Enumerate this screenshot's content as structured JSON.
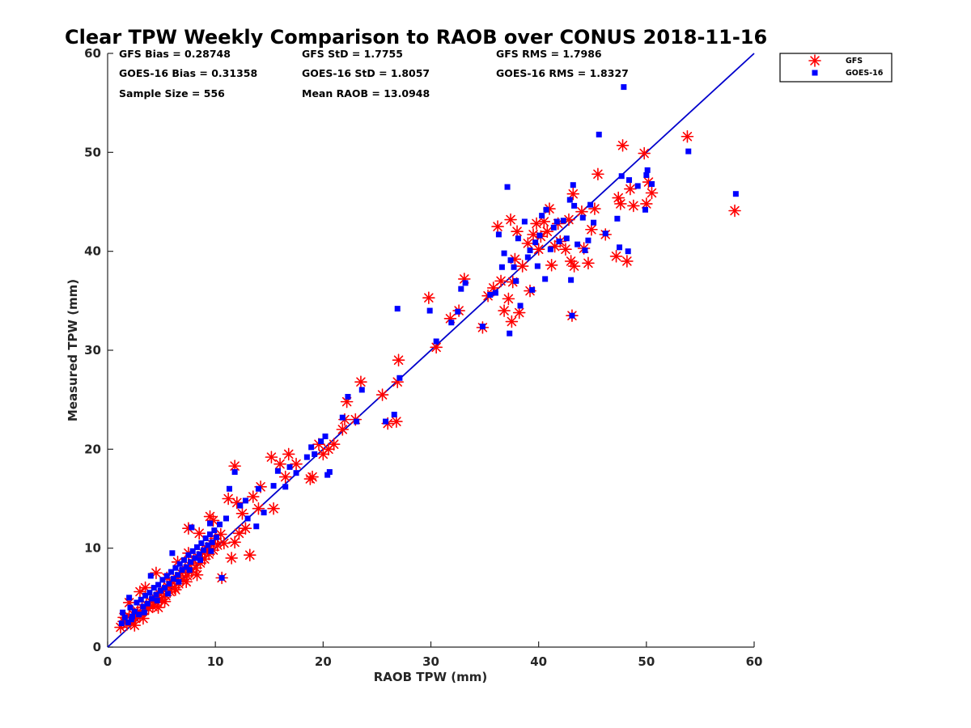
{
  "chart_data": {
    "type": "scatter",
    "title": "Clear TPW Weekly Comparison to RAOB over CONUS 2018-11-16",
    "xlabel": "RAOB TPW (mm)",
    "ylabel": "Measured TPW (mm)",
    "xlim": [
      0,
      60
    ],
    "ylim": [
      0,
      60
    ],
    "xticks": [
      "0",
      "10",
      "20",
      "30",
      "40",
      "50",
      "60"
    ],
    "yticks": [
      "0",
      "10",
      "20",
      "30",
      "40",
      "50",
      "60"
    ],
    "grid": false,
    "legend_position": "top-right, outside plot",
    "reference_line": {
      "type": "1:1",
      "color": "#0000cc"
    },
    "stats": {
      "gfs_bias": "GFS Bias = 0.28748",
      "goes_bias": "GOES-16 Bias = 0.31358",
      "sample_size": "Sample Size = 556",
      "gfs_std": "GFS StD = 1.7755",
      "goes_std": "GOES-16 StD = 1.8057",
      "mean_raob": "Mean RAOB = 13.0948",
      "gfs_rms": "GFS RMS = 1.7986",
      "goes_rms": "GOES-16 RMS = 1.8327"
    },
    "series": [
      {
        "name": "GFS",
        "marker": "asterisk",
        "color": "#ff0000",
        "points": [
          [
            1.2,
            2.0
          ],
          [
            1.5,
            2.6
          ],
          [
            1.8,
            2.3
          ],
          [
            2.0,
            3.1
          ],
          [
            2.2,
            2.7
          ],
          [
            2.4,
            3.3
          ],
          [
            2.6,
            2.9
          ],
          [
            2.8,
            3.6
          ],
          [
            3.0,
            3.2
          ],
          [
            3.2,
            4.0
          ],
          [
            3.4,
            3.7
          ],
          [
            3.6,
            4.3
          ],
          [
            3.8,
            3.9
          ],
          [
            4.0,
            4.6
          ],
          [
            4.2,
            4.1
          ],
          [
            4.4,
            5.0
          ],
          [
            4.6,
            4.5
          ],
          [
            4.8,
            5.4
          ],
          [
            5.0,
            4.8
          ],
          [
            5.2,
            5.8
          ],
          [
            5.4,
            5.2
          ],
          [
            5.6,
            6.1
          ],
          [
            5.8,
            5.6
          ],
          [
            6.0,
            6.6
          ],
          [
            6.2,
            6.0
          ],
          [
            6.4,
            7.0
          ],
          [
            6.6,
            6.4
          ],
          [
            6.8,
            7.5
          ],
          [
            7.0,
            6.8
          ],
          [
            7.2,
            7.9
          ],
          [
            7.4,
            7.2
          ],
          [
            7.6,
            8.3
          ],
          [
            7.8,
            7.6
          ],
          [
            8.0,
            8.8
          ],
          [
            8.2,
            8.0
          ],
          [
            8.4,
            9.1
          ],
          [
            8.6,
            8.5
          ],
          [
            8.8,
            9.6
          ],
          [
            9.0,
            8.9
          ],
          [
            9.2,
            10.0
          ],
          [
            9.4,
            9.4
          ],
          [
            9.6,
            10.5
          ],
          [
            9.8,
            9.8
          ],
          [
            10.0,
            11.0
          ],
          [
            10.2,
            10.3
          ],
          [
            10.5,
            11.4
          ],
          [
            2.0,
            4.5
          ],
          [
            3.0,
            5.6
          ],
          [
            3.5,
            6.0
          ],
          [
            4.5,
            7.5
          ],
          [
            5.5,
            7.0
          ],
          [
            6.5,
            8.6
          ],
          [
            7.5,
            9.5
          ],
          [
            7.5,
            12.0
          ],
          [
            8.5,
            11.5
          ],
          [
            9.5,
            13.2
          ],
          [
            9.8,
            12.8
          ],
          [
            10.6,
            7.0
          ],
          [
            11.5,
            9.0
          ],
          [
            11.8,
            18.3
          ],
          [
            11.2,
            15.0
          ],
          [
            12.0,
            14.6
          ],
          [
            12.5,
            13.5
          ],
          [
            12.8,
            12.0
          ],
          [
            13.2,
            9.3
          ],
          [
            13.5,
            15.2
          ],
          [
            14.0,
            14.0
          ],
          [
            14.2,
            16.2
          ],
          [
            15.2,
            19.2
          ],
          [
            15.4,
            14.0
          ],
          [
            16.0,
            18.5
          ],
          [
            16.5,
            17.2
          ],
          [
            16.8,
            19.5
          ],
          [
            17.5,
            18.5
          ],
          [
            18.8,
            17.0
          ],
          [
            19.0,
            17.2
          ],
          [
            19.6,
            20.5
          ],
          [
            20.0,
            19.5
          ],
          [
            20.5,
            20.0
          ],
          [
            21.0,
            20.5
          ],
          [
            21.8,
            22.0
          ],
          [
            22.2,
            24.8
          ],
          [
            22.0,
            23.0
          ],
          [
            23.0,
            23.0
          ],
          [
            23.5,
            26.8
          ],
          [
            25.5,
            25.5
          ],
          [
            26.0,
            22.6
          ],
          [
            26.8,
            22.8
          ],
          [
            26.9,
            26.8
          ],
          [
            27.0,
            29.0
          ],
          [
            29.8,
            35.3
          ],
          [
            30.5,
            30.3
          ],
          [
            31.8,
            33.2
          ],
          [
            32.6,
            34.0
          ],
          [
            33.1,
            37.2
          ],
          [
            34.8,
            32.3
          ],
          [
            35.3,
            35.5
          ],
          [
            35.8,
            36.3
          ],
          [
            36.2,
            42.5
          ],
          [
            36.5,
            37.0
          ],
          [
            36.8,
            34.0
          ],
          [
            37.2,
            35.2
          ],
          [
            37.4,
            43.2
          ],
          [
            37.6,
            36.9
          ],
          [
            37.5,
            32.9
          ],
          [
            37.8,
            39.2
          ],
          [
            38.0,
            42.0
          ],
          [
            38.2,
            33.8
          ],
          [
            38.5,
            38.5
          ],
          [
            39.0,
            40.8
          ],
          [
            39.2,
            36.0
          ],
          [
            39.5,
            41.7
          ],
          [
            39.8,
            42.8
          ],
          [
            40.0,
            40.2
          ],
          [
            40.2,
            41.5
          ],
          [
            40.5,
            43.0
          ],
          [
            40.8,
            42.0
          ],
          [
            41.0,
            44.3
          ],
          [
            41.2,
            38.6
          ],
          [
            41.5,
            40.5
          ],
          [
            41.8,
            42.8
          ],
          [
            42.0,
            41.0
          ],
          [
            42.5,
            40.2
          ],
          [
            42.8,
            43.2
          ],
          [
            43.0,
            39.0
          ],
          [
            43.2,
            45.8
          ],
          [
            43.3,
            38.5
          ],
          [
            43.1,
            33.5
          ],
          [
            44.0,
            44.0
          ],
          [
            44.2,
            40.3
          ],
          [
            44.6,
            38.8
          ],
          [
            44.9,
            42.2
          ],
          [
            45.5,
            47.8
          ],
          [
            45.2,
            44.3
          ],
          [
            46.2,
            41.7
          ],
          [
            47.2,
            39.5
          ],
          [
            47.4,
            45.4
          ],
          [
            47.6,
            44.8
          ],
          [
            47.8,
            50.7
          ],
          [
            48.2,
            39.0
          ],
          [
            48.5,
            46.3
          ],
          [
            48.8,
            44.6
          ],
          [
            49.8,
            49.9
          ],
          [
            50.0,
            44.8
          ],
          [
            50.2,
            47.0
          ],
          [
            50.5,
            45.9
          ],
          [
            53.8,
            51.6
          ],
          [
            58.2,
            44.1
          ],
          [
            1.5,
            3.0
          ],
          [
            2.5,
            2.2
          ],
          [
            3.3,
            2.9
          ],
          [
            4.7,
            4.0
          ],
          [
            5.3,
            4.6
          ],
          [
            6.3,
            5.8
          ],
          [
            7.3,
            6.6
          ],
          [
            8.3,
            7.3
          ],
          [
            9.3,
            9.8
          ],
          [
            10.8,
            10.5
          ],
          [
            11.8,
            10.6
          ],
          [
            12.2,
            11.5
          ]
        ]
      },
      {
        "name": "GOES-16",
        "marker": "square",
        "color": "#0000ff",
        "points": [
          [
            1.3,
            2.4
          ],
          [
            1.6,
            3.0
          ],
          [
            1.9,
            2.5
          ],
          [
            2.1,
            4.0
          ],
          [
            2.3,
            3.1
          ],
          [
            2.5,
            3.6
          ],
          [
            2.7,
            4.5
          ],
          [
            2.9,
            3.3
          ],
          [
            3.1,
            4.8
          ],
          [
            3.3,
            4.1
          ],
          [
            3.5,
            5.2
          ],
          [
            3.7,
            4.4
          ],
          [
            3.9,
            5.5
          ],
          [
            4.1,
            4.9
          ],
          [
            4.3,
            6.0
          ],
          [
            4.5,
            5.3
          ],
          [
            4.7,
            6.3
          ],
          [
            4.9,
            5.7
          ],
          [
            5.1,
            6.8
          ],
          [
            5.3,
            6.0
          ],
          [
            5.5,
            7.2
          ],
          [
            5.7,
            6.4
          ],
          [
            5.9,
            7.6
          ],
          [
            6.1,
            6.9
          ],
          [
            6.3,
            8.0
          ],
          [
            6.5,
            7.3
          ],
          [
            6.7,
            8.4
          ],
          [
            6.9,
            7.8
          ],
          [
            7.1,
            8.8
          ],
          [
            7.3,
            8.1
          ],
          [
            7.5,
            9.3
          ],
          [
            7.7,
            8.6
          ],
          [
            7.9,
            9.7
          ],
          [
            8.1,
            9.0
          ],
          [
            8.3,
            10.1
          ],
          [
            8.5,
            9.4
          ],
          [
            8.7,
            10.5
          ],
          [
            8.9,
            9.8
          ],
          [
            9.1,
            11.0
          ],
          [
            9.3,
            10.3
          ],
          [
            9.5,
            11.4
          ],
          [
            9.7,
            10.6
          ],
          [
            9.9,
            11.8
          ],
          [
            10.1,
            11.1
          ],
          [
            10.4,
            12.4
          ],
          [
            2.0,
            5.0
          ],
          [
            4.0,
            7.2
          ],
          [
            6.0,
            9.5
          ],
          [
            7.8,
            12.1
          ],
          [
            9.5,
            12.5
          ],
          [
            10.6,
            7.0
          ],
          [
            11.0,
            13.0
          ],
          [
            11.3,
            16.0
          ],
          [
            11.8,
            17.7
          ],
          [
            12.3,
            14.3
          ],
          [
            12.8,
            14.8
          ],
          [
            13.0,
            13.0
          ],
          [
            13.8,
            12.2
          ],
          [
            14.0,
            16.0
          ],
          [
            14.5,
            13.6
          ],
          [
            15.4,
            16.3
          ],
          [
            15.8,
            17.8
          ],
          [
            16.5,
            16.2
          ],
          [
            16.9,
            18.2
          ],
          [
            17.5,
            17.6
          ],
          [
            18.5,
            19.2
          ],
          [
            18.9,
            20.2
          ],
          [
            19.2,
            19.5
          ],
          [
            19.8,
            20.8
          ],
          [
            20.2,
            21.3
          ],
          [
            20.4,
            17.4
          ],
          [
            20.6,
            17.7
          ],
          [
            21.8,
            23.2
          ],
          [
            22.3,
            25.3
          ],
          [
            23.1,
            22.8
          ],
          [
            23.6,
            26.0
          ],
          [
            25.8,
            22.8
          ],
          [
            26.6,
            23.5
          ],
          [
            26.9,
            34.2
          ],
          [
            27.1,
            27.2
          ],
          [
            29.9,
            34.0
          ],
          [
            30.5,
            30.9
          ],
          [
            31.9,
            32.8
          ],
          [
            32.5,
            33.9
          ],
          [
            32.8,
            36.2
          ],
          [
            33.2,
            36.8
          ],
          [
            34.8,
            32.4
          ],
          [
            35.5,
            35.6
          ],
          [
            36.0,
            35.8
          ],
          [
            36.3,
            41.7
          ],
          [
            36.6,
            38.4
          ],
          [
            36.8,
            39.8
          ],
          [
            37.1,
            46.5
          ],
          [
            37.3,
            31.7
          ],
          [
            37.4,
            39.1
          ],
          [
            37.7,
            38.4
          ],
          [
            37.9,
            37.0
          ],
          [
            38.1,
            41.3
          ],
          [
            38.3,
            34.5
          ],
          [
            38.7,
            43.0
          ],
          [
            39.0,
            39.4
          ],
          [
            39.2,
            40.1
          ],
          [
            39.4,
            36.1
          ],
          [
            39.7,
            40.9
          ],
          [
            39.9,
            38.5
          ],
          [
            40.1,
            41.6
          ],
          [
            40.3,
            43.6
          ],
          [
            40.6,
            37.2
          ],
          [
            40.7,
            44.2
          ],
          [
            41.1,
            40.2
          ],
          [
            41.4,
            42.4
          ],
          [
            41.7,
            43.0
          ],
          [
            41.9,
            41.0
          ],
          [
            42.3,
            43.1
          ],
          [
            42.6,
            41.3
          ],
          [
            42.9,
            45.2
          ],
          [
            43.0,
            37.1
          ],
          [
            43.2,
            46.7
          ],
          [
            43.3,
            44.6
          ],
          [
            43.1,
            33.5
          ],
          [
            43.6,
            40.7
          ],
          [
            44.1,
            43.4
          ],
          [
            44.3,
            40.1
          ],
          [
            44.6,
            41.1
          ],
          [
            44.8,
            44.7
          ],
          [
            45.1,
            42.9
          ],
          [
            45.6,
            51.8
          ],
          [
            46.2,
            41.8
          ],
          [
            47.3,
            43.3
          ],
          [
            47.5,
            40.4
          ],
          [
            47.7,
            47.6
          ],
          [
            47.9,
            56.6
          ],
          [
            48.3,
            40.0
          ],
          [
            48.4,
            47.2
          ],
          [
            49.2,
            46.6
          ],
          [
            49.9,
            44.2
          ],
          [
            50.0,
            47.7
          ],
          [
            50.1,
            48.2
          ],
          [
            50.5,
            46.8
          ],
          [
            53.9,
            50.1
          ],
          [
            58.3,
            45.8
          ],
          [
            1.4,
            3.5
          ],
          [
            2.2,
            2.8
          ],
          [
            3.4,
            3.5
          ],
          [
            4.6,
            4.7
          ],
          [
            5.6,
            5.4
          ],
          [
            6.6,
            6.6
          ],
          [
            7.6,
            7.8
          ],
          [
            8.6,
            8.8
          ],
          [
            9.6,
            9.7
          ]
        ]
      }
    ]
  }
}
